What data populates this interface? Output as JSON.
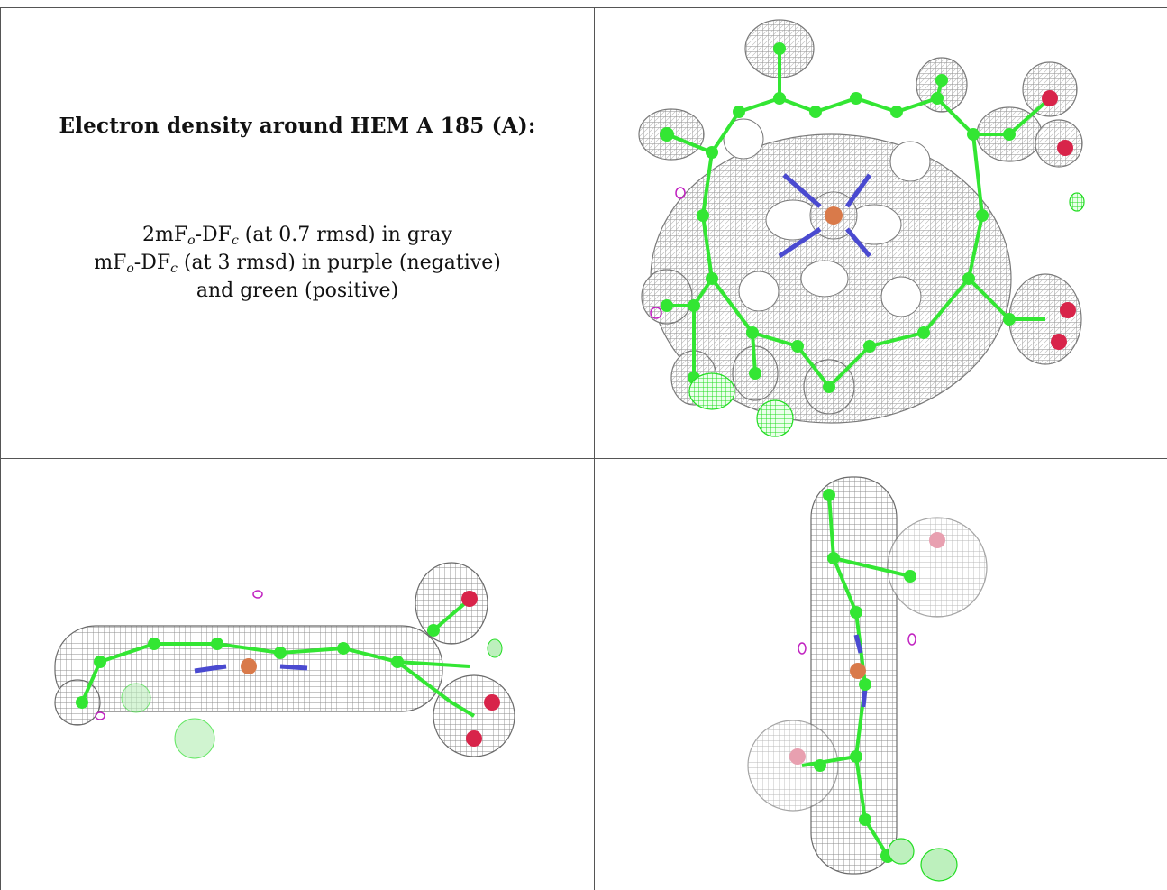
{
  "panel_title": "Electron density around HEM A 185 (A):",
  "legend": {
    "line1_prefix": "2mF",
    "line1_sub1": "o",
    "line1_mid": "-DF",
    "line1_sub2": "c",
    "line1_suffix": " (at 0.7 rmsd) in gray",
    "line2_prefix": "mF",
    "line2_sub1": "o",
    "line2_mid": "-DF",
    "line2_sub2": "c",
    "line2_suffix": " (at 3 rmsd) in purple (negative)",
    "line3": "and green (positive)"
  },
  "colors": {
    "mesh_gray": "#9a9a9a",
    "carbon_green": "#33e633",
    "nitrogen_blue": "#4a4ad0",
    "oxygen_red": "#d8244a",
    "iron_orange": "#d97a4a",
    "negative_purple": "#c020c0",
    "positive_green": "#22dd22",
    "grid_line": "#555555"
  },
  "views": {
    "top_right": "heme-front-view",
    "bottom_left": "heme-edge-view",
    "bottom_right": "heme-side-view"
  }
}
